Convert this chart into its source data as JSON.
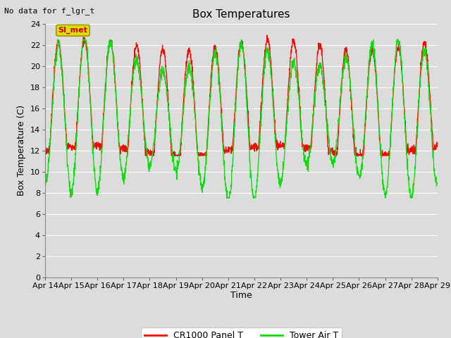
{
  "title": "Box Temperatures",
  "top_left_text": "No data for f_lgr_t",
  "legend_box_label": "SI_met",
  "ylabel": "Box Temperature (C)",
  "xlabel": "Time",
  "ylim": [
    0,
    24
  ],
  "yticks": [
    0,
    2,
    4,
    6,
    8,
    10,
    12,
    14,
    16,
    18,
    20,
    22,
    24
  ],
  "x_tick_labels": [
    "Apr 14",
    "Apr 15",
    "Apr 16",
    "Apr 17",
    "Apr 18",
    "Apr 19",
    "Apr 20",
    "Apr 21",
    "Apr 22",
    "Apr 23",
    "Apr 24",
    "Apr 25",
    "Apr 26",
    "Apr 27",
    "Apr 28",
    "Apr 29"
  ],
  "bg_color": "#dcdcdc",
  "plot_bg_color": "#dcdcdc",
  "grid_color": "#ffffff",
  "line1_color": "#ff0000",
  "line2_color": "#00dd00",
  "line1_label": "CR1000 Panel T",
  "line2_label": "Tower Air T",
  "title_fontsize": 11,
  "axis_label_fontsize": 9,
  "tick_fontsize": 8,
  "legend_fontsize": 9,
  "si_met_color": "#cc0000",
  "si_met_bg": "#dddd00",
  "si_met_border": "#999900"
}
